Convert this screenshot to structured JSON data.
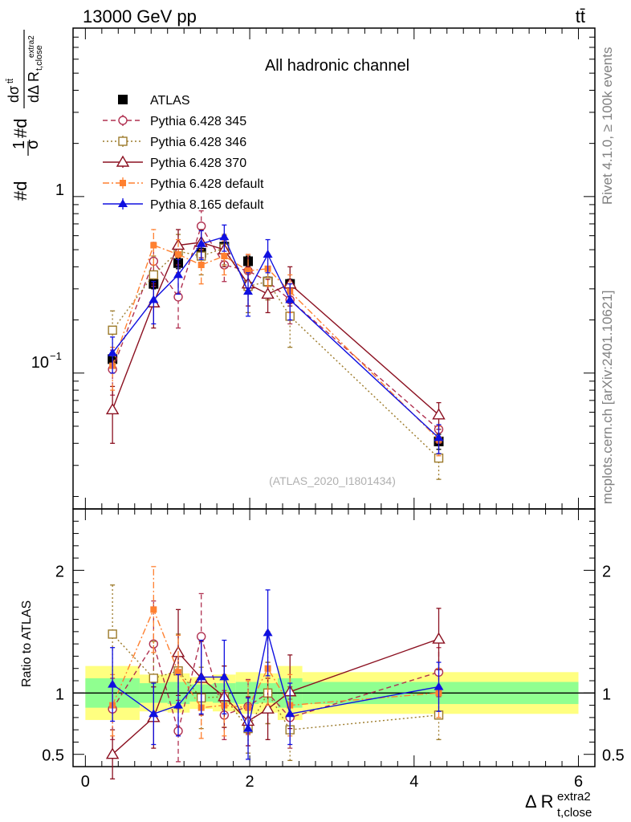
{
  "header": {
    "energy_label": "13000 GeV pp",
    "process_label": "tt̄"
  },
  "side_labels": {
    "rivet": "Rivet 4.1.0, ≥ 100k events",
    "mcplots": "mcplots.cern.ch [arXiv:2401.10621]"
  },
  "colors": {
    "ATLAS": "#000000",
    "p345": "#b03050",
    "p346": "#9c7a2a",
    "p370": "#8b1020",
    "p6def": "#ff8030",
    "p8def": "#1010e0",
    "band_inner": "#90ff90",
    "band_outer": "#ffff80"
  },
  "chart_data": [
    {
      "id": "main",
      "type": "line",
      "title": "All hadronic channel",
      "analysis_tag": "(ATLAS_2020_I1801434)",
      "ylabel_parts": {
        "prefix": "#d",
        "one": "1",
        "sigma": "σ",
        "mid": "#d",
        "num_main": "dσ",
        "num_sup": "tt̄",
        "den_main": "dΔ R",
        "den_sub": "t,close",
        "den_sup": "extra2"
      },
      "yscale": "log",
      "ylim": [
        0.017,
        9
      ],
      "xlim": [
        -0.15,
        6.2
      ],
      "y_tick_labels": [
        "1",
        "10"
      ],
      "y_tick_exponent": "−1",
      "legend": {
        "placement": "top-left",
        "entries": [
          "ATLAS",
          "Pythia 6.428 345",
          "Pythia 6.428 346",
          "Pythia 6.428 370",
          "Pythia 6.428 default",
          "Pythia 8.165 default"
        ]
      },
      "series": [
        {
          "name": "ATLAS",
          "key": "ATLAS",
          "marker": "square-filled",
          "line": "none",
          "x": [
            0.33,
            0.83,
            1.13,
            1.41,
            1.69,
            1.98,
            2.22,
            2.49,
            4.3
          ],
          "values": [
            0.12,
            0.32,
            0.42,
            0.48,
            0.52,
            0.43,
            0.33,
            0.32,
            0.041
          ],
          "err": [
            0.01,
            0.02,
            0.03,
            0.03,
            0.03,
            0.03,
            0.02,
            0.02,
            0.004
          ]
        },
        {
          "name": "Pythia 6.428 345",
          "key": "p345",
          "marker": "circle-open",
          "line": "dashed",
          "x": [
            0.33,
            0.83,
            1.13,
            1.41,
            1.69,
            1.98,
            2.22,
            2.49,
            4.3
          ],
          "values": [
            0.105,
            0.43,
            0.27,
            0.68,
            0.41,
            0.38,
            0.33,
            0.26,
            0.048
          ],
          "err": [
            0.03,
            0.12,
            0.09,
            0.15,
            0.08,
            0.09,
            0.07,
            0.07,
            0.008
          ]
        },
        {
          "name": "Pythia 6.428 346",
          "key": "p346",
          "marker": "square-open",
          "line": "dotted",
          "x": [
            0.33,
            0.83,
            1.13,
            1.41,
            1.69,
            1.98,
            2.22,
            2.49,
            4.3
          ],
          "values": [
            0.175,
            0.36,
            0.49,
            0.46,
            0.51,
            0.31,
            0.33,
            0.21,
            0.033
          ],
          "err": [
            0.05,
            0.1,
            0.12,
            0.1,
            0.1,
            0.09,
            0.07,
            0.07,
            0.008
          ]
        },
        {
          "name": "Pythia 6.428 370",
          "key": "p370",
          "marker": "triangle-open",
          "line": "solid",
          "x": [
            0.33,
            0.83,
            1.13,
            1.41,
            1.69,
            1.98,
            2.22,
            2.49,
            4.3
          ],
          "values": [
            0.062,
            0.25,
            0.53,
            0.55,
            0.5,
            0.32,
            0.28,
            0.32,
            0.058
          ],
          "err": [
            0.022,
            0.07,
            0.12,
            0.1,
            0.1,
            0.08,
            0.06,
            0.08,
            0.01
          ]
        },
        {
          "name": "Pythia 6.428 default",
          "key": "p6def",
          "marker": "square-filled-small",
          "line": "dashdot",
          "x": [
            0.33,
            0.83,
            1.13,
            1.41,
            1.69,
            1.98,
            2.22,
            2.49,
            4.3
          ],
          "values": [
            0.11,
            0.53,
            0.47,
            0.41,
            0.46,
            0.38,
            0.39,
            0.29,
            0.042
          ],
          "err": [
            0.03,
            0.12,
            0.1,
            0.09,
            0.1,
            0.09,
            0.08,
            0.07,
            0.008
          ]
        },
        {
          "name": "Pythia 8.165 default",
          "key": "p8def",
          "marker": "triangle-filled",
          "line": "solid",
          "x": [
            0.33,
            0.83,
            1.13,
            1.41,
            1.69,
            1.98,
            2.22,
            2.49,
            4.3
          ],
          "values": [
            0.13,
            0.26,
            0.36,
            0.54,
            0.59,
            0.29,
            0.47,
            0.26,
            0.043
          ],
          "err": [
            0.03,
            0.07,
            0.08,
            0.1,
            0.1,
            0.08,
            0.1,
            0.06,
            0.008
          ]
        }
      ]
    },
    {
      "id": "ratio",
      "type": "line",
      "ylabel": "Ratio to ATLAS",
      "xlabel_parts": {
        "main": "Δ R",
        "sup": "extra2",
        "sub": "t,close"
      },
      "xlim": [
        -0.15,
        6.2
      ],
      "ylim": [
        0.4,
        2.5
      ],
      "y_ticks": [
        0.5,
        1,
        2
      ],
      "y_tick_labels": [
        "0.5",
        "1",
        "2"
      ],
      "x_ticks": [
        0,
        2,
        4,
        6
      ],
      "x_tick_labels": [
        "0",
        "2",
        "4",
        "6"
      ],
      "bands": {
        "edges": [
          0,
          0.66,
          1,
          1.27,
          1.55,
          1.83,
          2.11,
          2.34,
          2.64,
          6
        ],
        "inner": [
          0.12,
          0.08,
          0.09,
          0.07,
          0.08,
          0.09,
          0.08,
          0.12,
          0.09
        ],
        "outer": [
          0.22,
          0.15,
          0.16,
          0.13,
          0.15,
          0.17,
          0.16,
          0.22,
          0.17
        ]
      },
      "series": [
        {
          "name": "Pythia 6.428 345",
          "key": "p345",
          "marker": "circle-open",
          "line": "dashed",
          "x": [
            0.33,
            0.83,
            1.13,
            1.41,
            1.69,
            1.98,
            2.22,
            2.49,
            4.3
          ],
          "values": [
            0.87,
            1.4,
            0.69,
            1.46,
            0.82,
            0.89,
            1.0,
            0.8,
            1.17
          ],
          "err": [
            0.25,
            0.35,
            0.25,
            0.35,
            0.2,
            0.22,
            0.25,
            0.25,
            0.2
          ]
        },
        {
          "name": "Pythia 6.428 346",
          "key": "p346",
          "marker": "square-open",
          "line": "dotted",
          "x": [
            0.33,
            0.83,
            1.13,
            1.41,
            1.69,
            1.98,
            2.22,
            2.49,
            4.3
          ],
          "values": [
            1.48,
            1.12,
            1.18,
            0.96,
            0.97,
            0.71,
            1.0,
            0.7,
            0.82
          ],
          "err": [
            0.4,
            0.3,
            0.3,
            0.25,
            0.25,
            0.2,
            0.25,
            0.25,
            0.2
          ]
        },
        {
          "name": "Pythia 6.428 370",
          "key": "p370",
          "marker": "triangle-open",
          "line": "solid",
          "x": [
            0.33,
            0.83,
            1.13,
            1.41,
            1.69,
            1.98,
            2.22,
            2.49,
            4.3
          ],
          "values": [
            0.5,
            0.8,
            1.33,
            1.12,
            0.97,
            0.77,
            0.87,
            1.01,
            1.44
          ],
          "err": [
            0.2,
            0.25,
            0.35,
            0.3,
            0.25,
            0.2,
            0.25,
            0.3,
            0.25
          ]
        },
        {
          "name": "Pythia 6.428 default",
          "key": "p6def",
          "marker": "square-filled-small",
          "line": "dashdot",
          "x": [
            0.33,
            0.83,
            1.13,
            1.41,
            1.69,
            1.98,
            2.22,
            2.49,
            4.3
          ],
          "values": [
            0.9,
            1.68,
            1.17,
            0.88,
            0.9,
            0.88,
            1.2,
            0.9,
            1.0
          ],
          "err": [
            0.25,
            0.35,
            0.3,
            0.25,
            0.25,
            0.22,
            0.3,
            0.25,
            0.2
          ]
        },
        {
          "name": "Pythia 8.165 default",
          "key": "p8def",
          "marker": "triangle-filled",
          "line": "solid",
          "x": [
            0.33,
            0.83,
            1.13,
            1.41,
            1.69,
            1.98,
            2.22,
            2.49,
            4.3
          ],
          "values": [
            1.07,
            0.83,
            0.9,
            1.13,
            1.13,
            0.71,
            1.49,
            0.83,
            1.05
          ],
          "err": [
            0.3,
            0.25,
            0.25,
            0.3,
            0.3,
            0.25,
            0.35,
            0.25,
            0.2
          ]
        }
      ]
    }
  ]
}
